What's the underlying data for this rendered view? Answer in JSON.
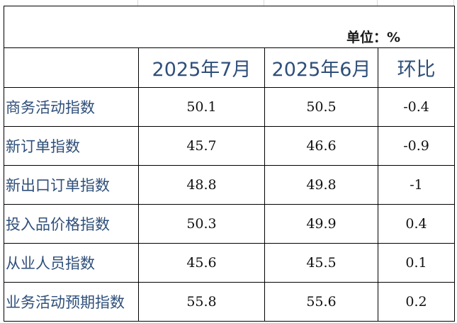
{
  "unit_label": "单位：%",
  "headers": {
    "col1": "2025年7月",
    "col2": "2025年6月",
    "col3": "环比"
  },
  "rows": [
    {
      "name": "商务活动指数",
      "jul": "50.1",
      "jun": "50.5",
      "mom": "-0.4"
    },
    {
      "name": "新订单指数",
      "jul": "45.7",
      "jun": "46.6",
      "mom": "-0.9"
    },
    {
      "name": "新出口订单指数",
      "jul": "48.8",
      "jun": "49.8",
      "mom": "-1"
    },
    {
      "name": "投入品价格指数",
      "jul": "50.3",
      "jun": "49.9",
      "mom": "0.4"
    },
    {
      "name": "从业人员指数",
      "jul": "45.6",
      "jun": "45.5",
      "mom": "0.1"
    },
    {
      "name": "业务活动预期指数",
      "jul": "55.8",
      "jun": "55.6",
      "mom": "0.2"
    }
  ]
}
